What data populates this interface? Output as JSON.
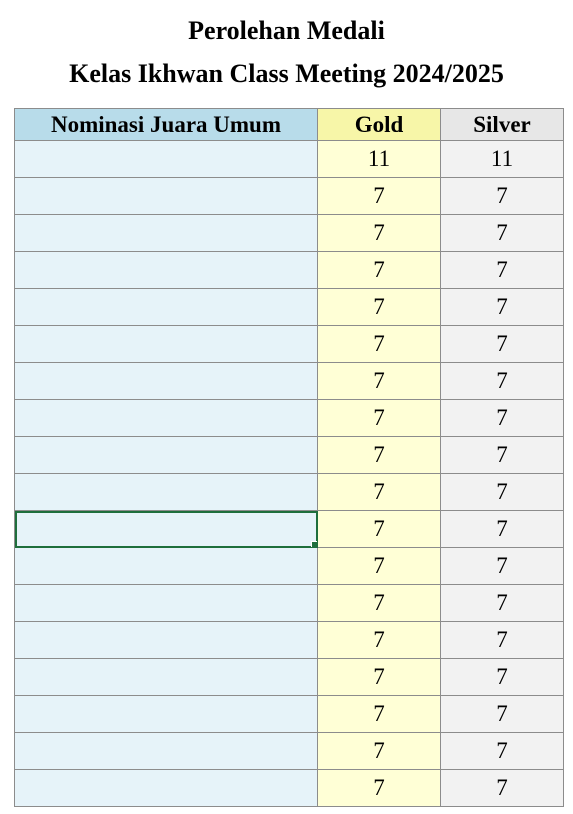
{
  "title": {
    "line1": "Perolehan Medali",
    "line2": "Kelas Ikhwan Class Meeting 2024/2025"
  },
  "table": {
    "headers": {
      "name": "Nominasi Juara Umum",
      "gold": "Gold",
      "silver": "Silver"
    },
    "selected_row_index": 10,
    "rows": [
      {
        "name": "",
        "gold": "11",
        "silver": "11"
      },
      {
        "name": "",
        "gold": "7",
        "silver": "7"
      },
      {
        "name": "",
        "gold": "7",
        "silver": "7"
      },
      {
        "name": "",
        "gold": "7",
        "silver": "7"
      },
      {
        "name": "",
        "gold": "7",
        "silver": "7"
      },
      {
        "name": "",
        "gold": "7",
        "silver": "7"
      },
      {
        "name": "",
        "gold": "7",
        "silver": "7"
      },
      {
        "name": "",
        "gold": "7",
        "silver": "7"
      },
      {
        "name": "",
        "gold": "7",
        "silver": "7"
      },
      {
        "name": "",
        "gold": "7",
        "silver": "7"
      },
      {
        "name": "",
        "gold": "7",
        "silver": "7"
      },
      {
        "name": "",
        "gold": "7",
        "silver": "7"
      },
      {
        "name": "",
        "gold": "7",
        "silver": "7"
      },
      {
        "name": "",
        "gold": "7",
        "silver": "7"
      },
      {
        "name": "",
        "gold": "7",
        "silver": "7"
      },
      {
        "name": "",
        "gold": "7",
        "silver": "7"
      },
      {
        "name": "",
        "gold": "7",
        "silver": "7"
      },
      {
        "name": "",
        "gold": "7",
        "silver": "7"
      }
    ]
  },
  "colors": {
    "header_name_bg": "#b8dcea",
    "header_gold_bg": "#f7f6a8",
    "header_silver_bg": "#e7e7e7",
    "cell_name_bg": "#e6f3f9",
    "cell_gold_bg": "#ffffd6",
    "cell_silver_bg": "#f2f2f2",
    "selection": "#1e6e3c",
    "grid": "#8c8c8c"
  }
}
